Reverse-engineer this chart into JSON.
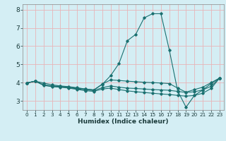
{
  "xlabel": "Humidex (Indice chaleur)",
  "background_color": "#d4eef4",
  "grid_color": "#e8b4b8",
  "line_color": "#1a7070",
  "xlim": [
    -0.5,
    23.5
  ],
  "ylim": [
    2.5,
    8.3
  ],
  "xticks": [
    0,
    1,
    2,
    3,
    4,
    5,
    6,
    7,
    8,
    9,
    10,
    11,
    12,
    13,
    14,
    15,
    16,
    17,
    18,
    19,
    20,
    21,
    22,
    23
  ],
  "yticks": [
    3,
    4,
    5,
    6,
    7,
    8
  ],
  "series": [
    {
      "x": [
        0,
        1,
        2,
        3,
        4,
        5,
        6,
        7,
        8,
        9,
        10,
        11,
        12,
        13,
        14,
        15,
        16,
        17,
        18,
        19,
        20,
        21,
        22,
        23
      ],
      "y": [
        3.98,
        4.08,
        3.98,
        3.88,
        3.82,
        3.78,
        3.72,
        3.65,
        3.6,
        3.9,
        4.38,
        5.05,
        6.3,
        6.65,
        7.55,
        7.78,
        7.78,
        5.8,
        3.55,
        2.65,
        3.3,
        3.6,
        3.95,
        4.25
      ]
    },
    {
      "x": [
        0,
        1,
        2,
        3,
        4,
        5,
        6,
        7,
        8,
        9,
        10,
        11,
        12,
        13,
        14,
        15,
        16,
        17,
        18,
        19,
        20,
        21,
        22,
        23
      ],
      "y": [
        3.98,
        4.08,
        3.88,
        3.82,
        3.8,
        3.75,
        3.7,
        3.65,
        3.6,
        3.92,
        4.15,
        4.12,
        4.08,
        4.05,
        4.02,
        4.0,
        3.98,
        3.95,
        3.7,
        3.48,
        3.62,
        3.75,
        4.0,
        4.25
      ]
    },
    {
      "x": [
        0,
        1,
        2,
        3,
        4,
        5,
        6,
        7,
        8,
        9,
        10,
        11,
        12,
        13,
        14,
        15,
        16,
        17,
        18,
        19,
        20,
        21,
        22,
        23
      ],
      "y": [
        3.98,
        4.08,
        3.88,
        3.8,
        3.77,
        3.72,
        3.66,
        3.6,
        3.57,
        3.72,
        3.82,
        3.75,
        3.7,
        3.68,
        3.65,
        3.62,
        3.6,
        3.58,
        3.52,
        3.46,
        3.5,
        3.6,
        3.8,
        4.25
      ]
    },
    {
      "x": [
        0,
        1,
        2,
        3,
        4,
        5,
        6,
        7,
        8,
        9,
        10,
        11,
        12,
        13,
        14,
        15,
        16,
        17,
        18,
        19,
        20,
        21,
        22,
        23
      ],
      "y": [
        3.98,
        4.08,
        3.85,
        3.78,
        3.75,
        3.7,
        3.63,
        3.56,
        3.52,
        3.65,
        3.7,
        3.62,
        3.55,
        3.5,
        3.46,
        3.42,
        3.38,
        3.35,
        3.3,
        3.26,
        3.3,
        3.42,
        3.68,
        4.25
      ]
    }
  ]
}
